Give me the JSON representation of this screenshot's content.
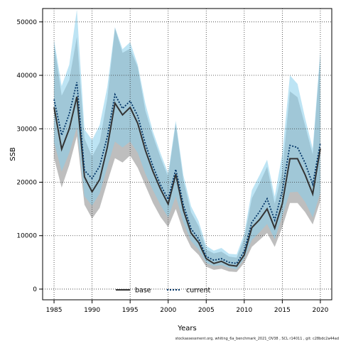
{
  "chart_data": {
    "type": "line",
    "xlabel": "Years",
    "ylabel": "SSB",
    "xlim": [
      1983.5,
      2021.5
    ],
    "ylim": [
      -2000,
      52500
    ],
    "xticks": [
      1985,
      1990,
      1995,
      2000,
      2005,
      2010,
      2015,
      2020
    ],
    "yticks": [
      0,
      10000,
      20000,
      30000,
      40000,
      50000
    ],
    "grid": true,
    "legend_position": "bottom-center",
    "x": [
      1985,
      1986,
      1987,
      1988,
      1989,
      1990,
      1991,
      1992,
      1993,
      1994,
      1995,
      1996,
      1997,
      1998,
      1999,
      2000,
      2001,
      2002,
      2003,
      2004,
      2005,
      2006,
      2007,
      2008,
      2009,
      2010,
      2011,
      2012,
      2013,
      2014,
      2015,
      2016,
      2017,
      2018,
      2019,
      2020
    ],
    "series": [
      {
        "name": "base",
        "color": "#333333",
        "band_color": "#888888",
        "values": [
          34000,
          26200,
          30000,
          36000,
          21000,
          18200,
          20500,
          26500,
          34800,
          32600,
          34000,
          31000,
          26000,
          22000,
          18700,
          15900,
          21500,
          14800,
          10500,
          8700,
          5700,
          4800,
          5200,
          4500,
          4300,
          6400,
          11500,
          13000,
          15000,
          11400,
          16000,
          24400,
          24400,
          21400,
          17800,
          26300
        ],
        "lower": [
          24500,
          19000,
          23200,
          28600,
          15800,
          13200,
          15200,
          20000,
          24500,
          23700,
          25000,
          22700,
          19400,
          16100,
          13500,
          11600,
          15000,
          10800,
          7800,
          6400,
          4200,
          3600,
          3800,
          3300,
          3200,
          4900,
          7900,
          9200,
          10500,
          7900,
          11600,
          16100,
          16100,
          14400,
          12100,
          16500
        ],
        "upper": [
          45900,
          36200,
          39100,
          47200,
          28200,
          24800,
          27500,
          35600,
          48900,
          44200,
          45000,
          41500,
          33400,
          28700,
          24600,
          21000,
          31000,
          20400,
          14400,
          11800,
          7400,
          6700,
          7000,
          6100,
          5900,
          9500,
          17000,
          19800,
          22900,
          16000,
          22000,
          37000,
          35900,
          30600,
          25200,
          44000
        ]
      },
      {
        "name": "current",
        "color": "#003366",
        "band_color": "#87ceeb",
        "values": [
          35500,
          28800,
          32800,
          38700,
          22200,
          20700,
          23000,
          28500,
          36400,
          33800,
          35200,
          32400,
          27200,
          23000,
          19500,
          16800,
          22400,
          15800,
          11300,
          9400,
          6100,
          5400,
          5700,
          5000,
          4800,
          7100,
          12500,
          14500,
          16900,
          12900,
          18400,
          26900,
          26500,
          23600,
          19600,
          27300
        ],
        "lower": [
          27500,
          22000,
          25500,
          30300,
          17400,
          15600,
          17900,
          22800,
          27600,
          26500,
          27600,
          25500,
          21600,
          18500,
          15700,
          13400,
          17400,
          12500,
          9000,
          7400,
          4900,
          4300,
          4500,
          4000,
          3700,
          5700,
          9200,
          10600,
          12200,
          9300,
          13700,
          18100,
          18200,
          16300,
          13400,
          18000
        ],
        "upper": [
          46600,
          38000,
          42000,
          52300,
          29900,
          27900,
          30700,
          37800,
          49000,
          44900,
          46200,
          42000,
          34700,
          29500,
          25400,
          21700,
          31500,
          21300,
          15500,
          12700,
          8100,
          7200,
          7700,
          6600,
          6500,
          10300,
          18500,
          21300,
          24200,
          17300,
          25300,
          40000,
          38400,
          32000,
          26300,
          44500
        ]
      }
    ],
    "footer": "stockassessment.org, whiting_6a_benchmark_2021_OV38 , SCL r14011 , git: c28bdc2a44ad"
  }
}
